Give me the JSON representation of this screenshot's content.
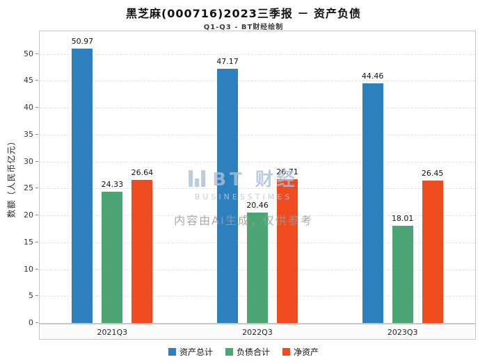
{
  "title": "黑芝麻(000716)2023三季报 － 资产负债",
  "subtitle": "Q1-Q3 - BT财经绘制",
  "ylabel": "数额（人民币亿元）",
  "watermark": {
    "brand": "BT 财经",
    "sub": "BUSINESSTIMES",
    "note": "内容由AI生成，仅供参考"
  },
  "chart_data": {
    "type": "bar",
    "title": "黑芝麻(000716)2023三季报 － 资产负债",
    "subtitle": "Q1-Q3 - BT财经绘制",
    "xlabel": "",
    "ylabel": "数额（人民币亿元）",
    "categories": [
      "2021Q3",
      "2022Q3",
      "2023Q3"
    ],
    "series": [
      {
        "name": "资产总计",
        "color": "#2e7fbe",
        "values": [
          50.97,
          47.17,
          44.46
        ]
      },
      {
        "name": "负债合计",
        "color": "#4ba673",
        "values": [
          24.33,
          20.46,
          18.01
        ]
      },
      {
        "name": "净资产",
        "color": "#ee4c1f",
        "values": [
          26.64,
          26.71,
          26.45
        ]
      }
    ],
    "ylim": [
      0,
      54.2
    ],
    "yticks": [
      0,
      5,
      10,
      15,
      20,
      25,
      30,
      35,
      40,
      45,
      50
    ],
    "grid": true,
    "grid_style": "dashed",
    "legend_position": "bottom"
  }
}
